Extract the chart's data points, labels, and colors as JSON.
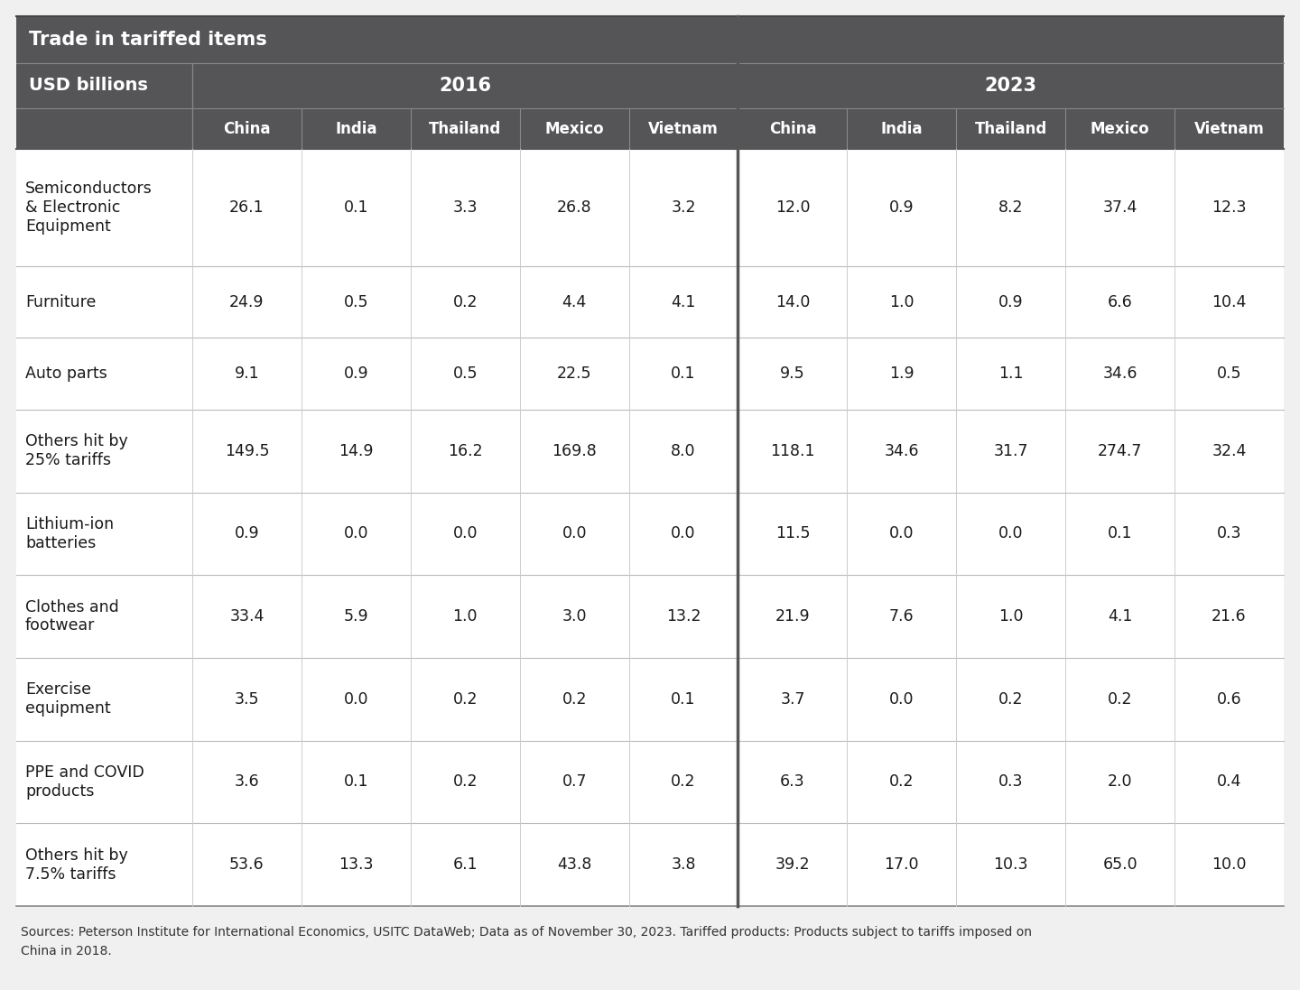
{
  "title": "Trade in tariffed items",
  "subtitle": "USD billions",
  "header_bg": "#555558",
  "header_text_color": "#ffffff",
  "body_bg": "#ffffff",
  "body_text_color": "#1a1a1a",
  "row_divider_color": "#bbbbbb",
  "strong_divider_color": "#555558",
  "years": [
    "2016",
    "2023"
  ],
  "countries": [
    "China",
    "India",
    "Thailand",
    "Mexico",
    "Vietnam"
  ],
  "rows": [
    {
      "label": "Semiconductors\n& Electronic\nEquipment",
      "2016": [
        26.1,
        0.1,
        3.3,
        26.8,
        3.2
      ],
      "2023": [
        12.0,
        0.9,
        8.2,
        37.4,
        12.3
      ],
      "multiline": true
    },
    {
      "label": "Furniture",
      "2016": [
        24.9,
        0.5,
        0.2,
        4.4,
        4.1
      ],
      "2023": [
        14.0,
        1.0,
        0.9,
        6.6,
        10.4
      ],
      "multiline": false
    },
    {
      "label": "Auto parts",
      "2016": [
        9.1,
        0.9,
        0.5,
        22.5,
        0.1
      ],
      "2023": [
        9.5,
        1.9,
        1.1,
        34.6,
        0.5
      ],
      "multiline": false
    },
    {
      "label": "Others hit by\n25% tariffs",
      "2016": [
        149.5,
        14.9,
        16.2,
        169.8,
        8.0
      ],
      "2023": [
        118.1,
        34.6,
        31.7,
        274.7,
        32.4
      ],
      "multiline": true
    },
    {
      "label": "Lithium-ion\nbatteries",
      "2016": [
        0.9,
        0.0,
        0.0,
        0.0,
        0.0
      ],
      "2023": [
        11.5,
        0.0,
        0.0,
        0.1,
        0.3
      ],
      "multiline": true
    },
    {
      "label": "Clothes and\nfootwear",
      "2016": [
        33.4,
        5.9,
        1.0,
        3.0,
        13.2
      ],
      "2023": [
        21.9,
        7.6,
        1.0,
        4.1,
        21.6
      ],
      "multiline": true
    },
    {
      "label": "Exercise\nequipment",
      "2016": [
        3.5,
        0.0,
        0.2,
        0.2,
        0.1
      ],
      "2023": [
        3.7,
        0.0,
        0.2,
        0.2,
        0.6
      ],
      "multiline": true
    },
    {
      "label": "PPE and COVID\nproducts",
      "2016": [
        3.6,
        0.1,
        0.2,
        0.7,
        0.2
      ],
      "2023": [
        6.3,
        0.2,
        0.3,
        2.0,
        0.4
      ],
      "multiline": true
    },
    {
      "label": "Others hit by\n7.5% tariffs",
      "2016": [
        53.6,
        13.3,
        6.1,
        43.8,
        3.8
      ],
      "2023": [
        39.2,
        17.0,
        10.3,
        65.0,
        10.0
      ],
      "multiline": true
    }
  ],
  "footnote": "Sources: Peterson Institute for International Economics, USITC DataWeb; Data as of November 30, 2023. Tariffed products: Products subject to tariffs imposed on\nChina in 2018.",
  "outer_bg": "#f0f0f0"
}
